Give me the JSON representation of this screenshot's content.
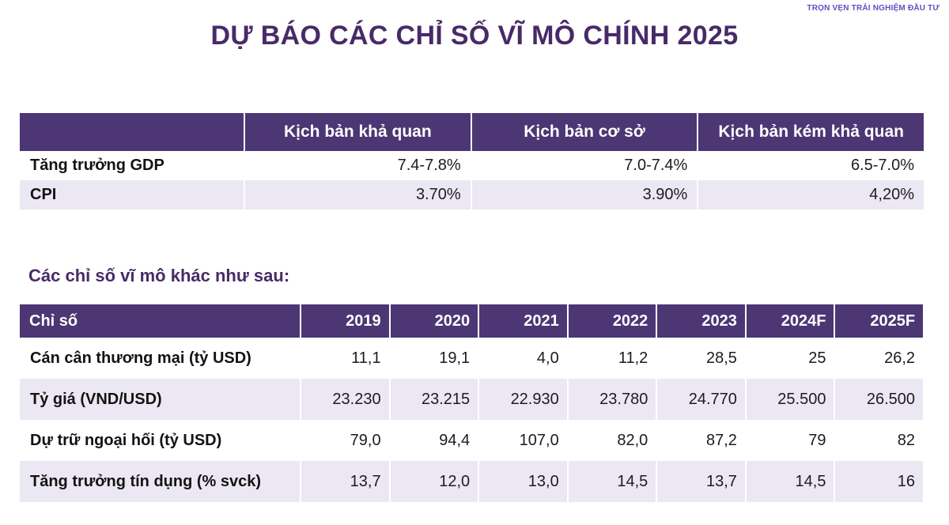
{
  "page": {
    "tagline": "TRỌN VẸN TRẢI NGHIỆM ĐẦU TƯ",
    "title": "DỰ BÁO CÁC CHỈ SỐ VĨ MÔ CHÍNH 2025",
    "section_heading": "Các chỉ số vĩ mô khác như sau:"
  },
  "colors": {
    "header_purple": "#4c3674",
    "row_lavender": "#ece8f3",
    "title_purple": "#482a68",
    "tagline_purple": "#5c50c2"
  },
  "scenario_table": {
    "headers": [
      "",
      "Kịch bản khả quan",
      "Kịch bản cơ sở",
      "Kịch bản kém khả quan"
    ],
    "rows": [
      {
        "label": "Tăng trưởng GDP",
        "values": [
          "7.4-7.8%",
          "7.0-7.4%",
          "6.5-7.0%"
        ]
      },
      {
        "label": "CPI",
        "values": [
          "3.70%",
          "3.90%",
          "4,20%"
        ]
      }
    ]
  },
  "indicator_table": {
    "headers": [
      "Chỉ số",
      "2019",
      "2020",
      "2021",
      "2022",
      "2023",
      "2024F",
      "2025F"
    ],
    "rows": [
      {
        "label": "Cán cân thương mại (tỷ USD)",
        "values": [
          "11,1",
          "19,1",
          "4,0",
          "11,2",
          "28,5",
          "25",
          "26,2"
        ]
      },
      {
        "label": "Tỷ giá (VND/USD)",
        "values": [
          "23.230",
          "23.215",
          "22.930",
          "23.780",
          "24.770",
          "25.500",
          "26.500"
        ]
      },
      {
        "label": "Dự trữ ngoại hối (tỷ USD)",
        "values": [
          "79,0",
          "94,4",
          "107,0",
          "82,0",
          "87,2",
          "79",
          "82"
        ]
      },
      {
        "label": "Tăng trưởng tín dụng (% svck)",
        "values": [
          "13,7",
          "12,0",
          "13,0",
          "14,5",
          "13,7",
          "14,5",
          "16"
        ]
      }
    ]
  }
}
